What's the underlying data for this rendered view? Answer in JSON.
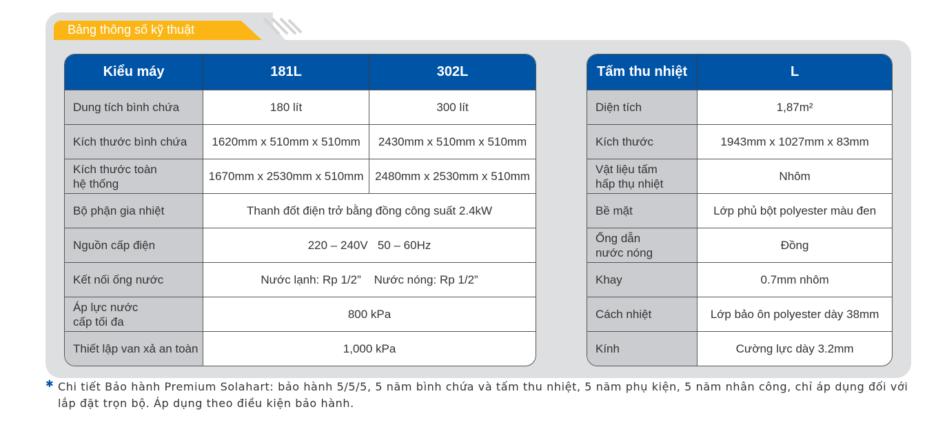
{
  "section_title": "Bảng thông số kỹ thuật",
  "colors": {
    "header_blue": "#0054a6",
    "tab_yellow": "#fbb616",
    "label_gray": "#cbcccf"
  },
  "left_table": {
    "headers": [
      "Kiểu máy",
      "181L",
      "302L"
    ],
    "rows": [
      {
        "label": "Dung tích bình chứa",
        "values": [
          "180 lít",
          "300 lít"
        ]
      },
      {
        "label": "Kích thước bình chứa",
        "values": [
          "1620mm x 510mm x 510mm",
          "2430mm x 510mm x 510mm"
        ]
      },
      {
        "label": "Kích thước toàn\nhệ thống",
        "values": [
          "1670mm x 2530mm x 510mm",
          "2480mm x 2530mm x 510mm"
        ]
      },
      {
        "label": "Bộ phận gia nhiệt",
        "values": [
          "Thanh đốt điện trở bằng đồng công suất 2.4kW"
        ]
      },
      {
        "label": "Nguồn cấp điện",
        "values": [
          "220 – 240V   50 – 60Hz"
        ]
      },
      {
        "label": "Kết nối ống nước",
        "values": [
          "Nước lạnh: Rp 1/2”    Nước nóng: Rp 1/2”"
        ]
      },
      {
        "label": "Áp lực nước\ncấp tối đa",
        "values": [
          "800 kPa"
        ]
      },
      {
        "label": "Thiết lập van xả an toàn",
        "values": [
          "1,000 kPa"
        ]
      }
    ]
  },
  "right_table": {
    "headers": [
      "Tấm thu nhiệt",
      "L"
    ],
    "rows": [
      {
        "label": "Diện tích",
        "values": [
          "1,87m²"
        ]
      },
      {
        "label": "Kích thước",
        "values": [
          "1943mm x 1027mm x 83mm"
        ]
      },
      {
        "label": "Vật liệu tấm\nhấp thụ nhiệt",
        "values": [
          "Nhôm"
        ]
      },
      {
        "label": "Bề mặt",
        "values": [
          "Lớp phủ bột polyester màu đen"
        ]
      },
      {
        "label": "Ống dẫn\nnước nóng",
        "values": [
          "Đồng"
        ]
      },
      {
        "label": "Khay",
        "values": [
          "0.7mm nhôm"
        ]
      },
      {
        "label": "Cách nhiệt",
        "values": [
          "Lớp bảo ôn polyester dày 38mm"
        ]
      },
      {
        "label": "Kính",
        "values": [
          "Cường lực dày 3.2mm"
        ]
      }
    ]
  },
  "footnote": "Chi tiết Bảo hành Premium Solahart: bảo hành 5/5/5, 5 năm bình chứa và tấm thu nhiệt, 5 năm phụ kiện, 5 năm nhân công, chỉ áp dụng đối với lắp đặt trọn bộ. Áp dụng theo điều kiện bảo hành."
}
